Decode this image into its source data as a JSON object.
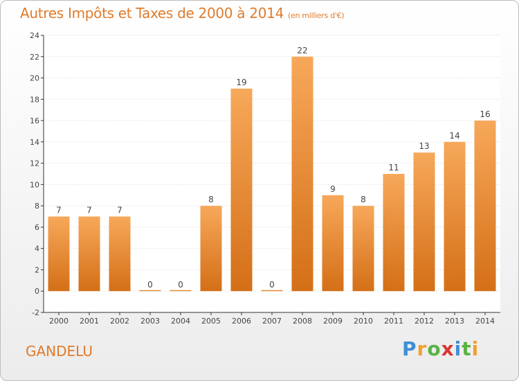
{
  "title": "Autres Impôts et Taxes de 2000 à 2014",
  "subtitle": "(en milliers d'€)",
  "commune": "GANDELU",
  "logo": {
    "letters": [
      "P",
      "r",
      "o",
      "x",
      "i",
      "t",
      "i"
    ],
    "colors": [
      "#3f8fd6",
      "#f0a030",
      "#59b342",
      "#d93636",
      "#3f8fd6",
      "#59b342",
      "#f0a030"
    ]
  },
  "colors": {
    "bar_top": "#f7a85a",
    "bar_bottom": "#d46f17",
    "title": "#e07b2b",
    "grid": "#d8d8d8",
    "axis": "#333333"
  },
  "chart_data": {
    "type": "bar",
    "categories": [
      "2000",
      "2001",
      "2002",
      "2003",
      "2004",
      "2005",
      "2006",
      "2007",
      "2008",
      "2009",
      "2010",
      "2011",
      "2012",
      "2013",
      "2014"
    ],
    "values": [
      7,
      7,
      7,
      0,
      0,
      8,
      19,
      0,
      22,
      9,
      8,
      11,
      13,
      14,
      16
    ],
    "yticks": [
      "-2",
      "0",
      "2",
      "4",
      "6",
      "8",
      "10",
      "12",
      "14",
      "16",
      "18",
      "20",
      "22",
      "24"
    ],
    "ylim": [
      -2,
      24
    ],
    "grid": true,
    "legend": "none"
  }
}
